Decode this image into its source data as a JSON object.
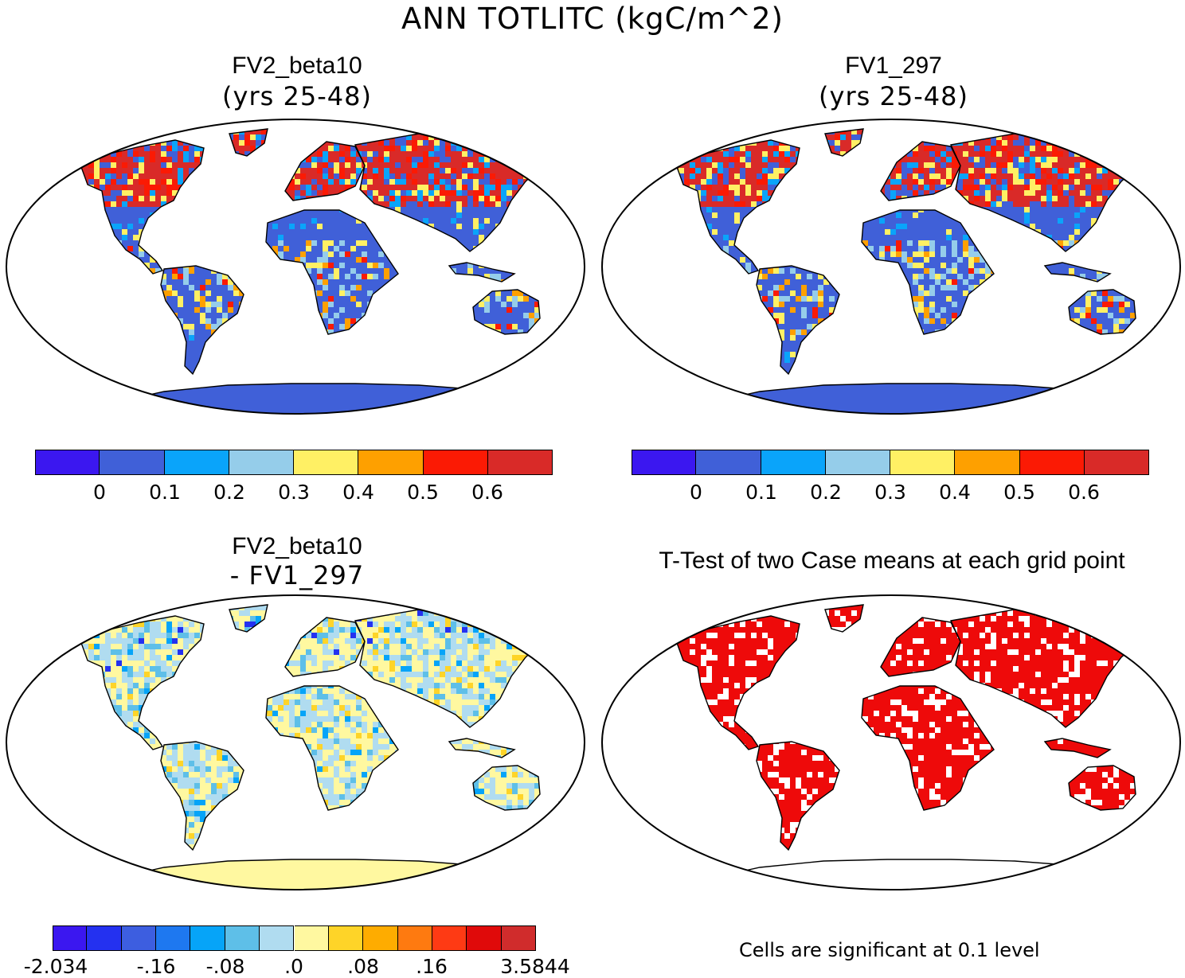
{
  "title": "ANN TOTLITC (kgC/m^2)",
  "panels": [
    {
      "id": "fv2",
      "title": "FV2_beta10",
      "subtitle": "(yrs 25-48)"
    },
    {
      "id": "fv1",
      "title": "FV1_297",
      "subtitle": "(yrs 25-48)"
    },
    {
      "id": "diff",
      "title": "FV2_beta10",
      "subtitle": "- FV1_297"
    },
    {
      "id": "ttest",
      "title": "T-Test of two Case means at each grid point",
      "subtitle": ""
    }
  ],
  "colorbars": {
    "mean": {
      "colors": [
        "#3b17f0",
        "#4060d8",
        "#0aa4fa",
        "#95cdea",
        "#fff064",
        "#fea000",
        "#fb1a04",
        "#d92a28"
      ],
      "labels": [
        "0",
        "0.1",
        "0.2",
        "0.3",
        "0.4",
        "0.5",
        "0.6"
      ]
    },
    "diff": {
      "colors": [
        "#3b17f0",
        "#2431f0",
        "#3d5ee0",
        "#1e78f0",
        "#06a4f8",
        "#5ebfe8",
        "#b0dcf0",
        "#fff8a0",
        "#fed428",
        "#feac00",
        "#fe7a10",
        "#fe3a14",
        "#e00a0a",
        "#d02c2c"
      ],
      "labels": [
        "-2.034",
        "-.16",
        "-.08",
        ".0",
        ".08",
        ".16",
        "3.5844"
      ]
    }
  },
  "ttest_note": "Cells are significant at 0.1 level",
  "legend_colors": {
    "ocean": "#ffffff",
    "antarctica_mean": "#4060d8",
    "antarctica_diff": "#fff8a0",
    "significant": "#ee0a0a",
    "coast": "#000000"
  }
}
